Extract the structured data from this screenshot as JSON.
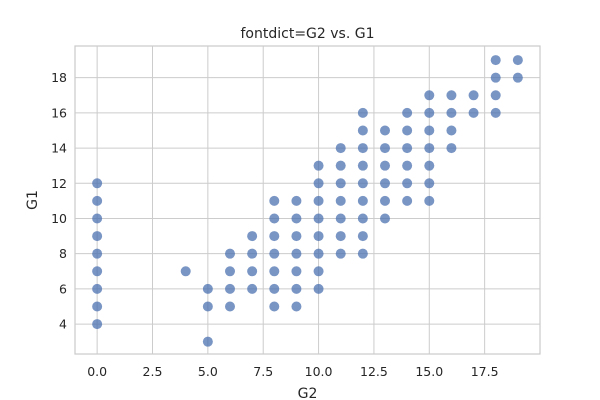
{
  "chart_data": {
    "type": "scatter",
    "title": "fontdict=G2 vs. G1",
    "xlabel": "G2",
    "ylabel": "G1",
    "xlim": [
      -1,
      20
    ],
    "ylim": [
      2.3,
      19.8
    ],
    "xticks": [
      0.0,
      2.5,
      5.0,
      7.5,
      10.0,
      12.5,
      15.0,
      17.5
    ],
    "xtick_labels": [
      "0.0",
      "2.5",
      "5.0",
      "7.5",
      "10.0",
      "12.5",
      "15.0",
      "17.5"
    ],
    "yticks": [
      4,
      6,
      8,
      10,
      12,
      14,
      16,
      18
    ],
    "ytick_labels": [
      "4",
      "6",
      "8",
      "10",
      "12",
      "14",
      "16",
      "18"
    ],
    "grid": true,
    "marker_color": "#4c72b0",
    "points": [
      [
        0,
        4
      ],
      [
        0,
        5
      ],
      [
        0,
        6
      ],
      [
        0,
        7
      ],
      [
        0,
        8
      ],
      [
        0,
        9
      ],
      [
        0,
        10
      ],
      [
        0,
        11
      ],
      [
        0,
        12
      ],
      [
        4,
        7
      ],
      [
        5,
        3
      ],
      [
        5,
        5
      ],
      [
        5,
        6
      ],
      [
        6,
        5
      ],
      [
        6,
        6
      ],
      [
        6,
        7
      ],
      [
        6,
        8
      ],
      [
        7,
        6
      ],
      [
        7,
        7
      ],
      [
        7,
        8
      ],
      [
        7,
        9
      ],
      [
        8,
        5
      ],
      [
        8,
        6
      ],
      [
        8,
        7
      ],
      [
        8,
        8
      ],
      [
        8,
        9
      ],
      [
        8,
        10
      ],
      [
        8,
        11
      ],
      [
        9,
        5
      ],
      [
        9,
        6
      ],
      [
        9,
        7
      ],
      [
        9,
        8
      ],
      [
        9,
        9
      ],
      [
        9,
        10
      ],
      [
        9,
        11
      ],
      [
        10,
        6
      ],
      [
        10,
        7
      ],
      [
        10,
        8
      ],
      [
        10,
        9
      ],
      [
        10,
        10
      ],
      [
        10,
        11
      ],
      [
        10,
        12
      ],
      [
        10,
        13
      ],
      [
        11,
        8
      ],
      [
        11,
        9
      ],
      [
        11,
        10
      ],
      [
        11,
        11
      ],
      [
        11,
        12
      ],
      [
        11,
        13
      ],
      [
        11,
        14
      ],
      [
        12,
        8
      ],
      [
        12,
        9
      ],
      [
        12,
        10
      ],
      [
        12,
        11
      ],
      [
        12,
        12
      ],
      [
        12,
        13
      ],
      [
        12,
        14
      ],
      [
        12,
        15
      ],
      [
        12,
        16
      ],
      [
        13,
        10
      ],
      [
        13,
        11
      ],
      [
        13,
        12
      ],
      [
        13,
        13
      ],
      [
        13,
        14
      ],
      [
        13,
        15
      ],
      [
        14,
        11
      ],
      [
        14,
        12
      ],
      [
        14,
        13
      ],
      [
        14,
        14
      ],
      [
        14,
        15
      ],
      [
        14,
        16
      ],
      [
        15,
        11
      ],
      [
        15,
        12
      ],
      [
        15,
        13
      ],
      [
        15,
        14
      ],
      [
        15,
        15
      ],
      [
        15,
        16
      ],
      [
        15,
        17
      ],
      [
        16,
        14
      ],
      [
        16,
        15
      ],
      [
        16,
        16
      ],
      [
        16,
        17
      ],
      [
        17,
        16
      ],
      [
        17,
        17
      ],
      [
        18,
        16
      ],
      [
        18,
        17
      ],
      [
        18,
        18
      ],
      [
        18,
        19
      ],
      [
        19,
        18
      ],
      [
        19,
        19
      ]
    ]
  }
}
